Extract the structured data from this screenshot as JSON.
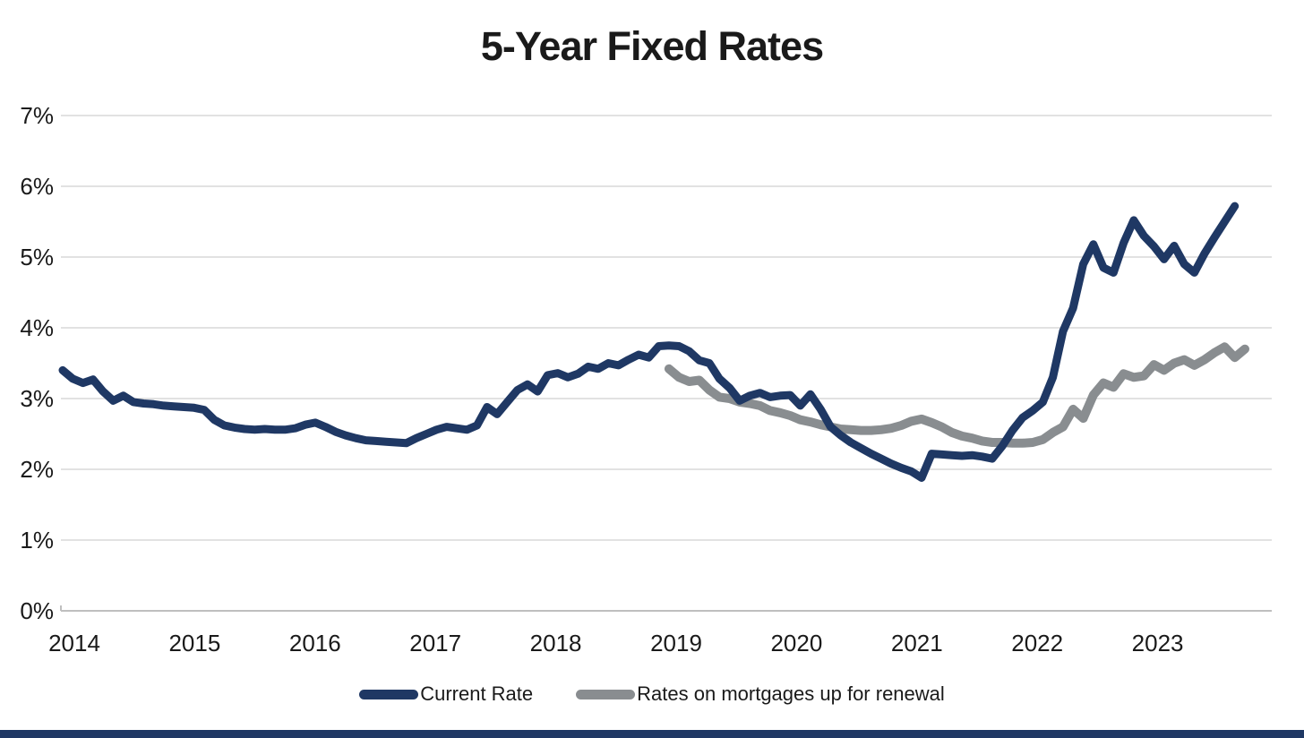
{
  "title": "5-Year Fixed Rates",
  "colors": {
    "navy": "#1f3864",
    "gray": "#898d90",
    "gridline": "#d9d9d9",
    "axis_line": "#bfbfbf",
    "text": "#1a1a1a"
  },
  "chart_data": {
    "type": "line",
    "title": "5-Year Fixed Rates",
    "x_unit": "month",
    "x_start": "2014-01",
    "x_end": "2023-10",
    "grid": true,
    "legend_position": "bottom",
    "y_axis": {
      "min": 0,
      "max": 7,
      "format": "percent",
      "tick_labels": [
        "0%",
        "1%",
        "2%",
        "3%",
        "4%",
        "5%",
        "6%",
        "7%"
      ]
    },
    "x_axis": {
      "tick_labels": [
        "2014",
        "2015",
        "2016",
        "2017",
        "2018",
        "2019",
        "2020",
        "2021",
        "2022",
        "2023"
      ]
    },
    "series": [
      {
        "id": "current-rate",
        "name": "Current Rate",
        "color": "#1f3864",
        "start_month_index": 0,
        "values": [
          3.4,
          3.28,
          3.22,
          3.27,
          3.1,
          2.97,
          3.04,
          2.95,
          2.93,
          2.92,
          2.9,
          2.89,
          2.88,
          2.87,
          2.84,
          2.7,
          2.62,
          2.59,
          2.57,
          2.56,
          2.57,
          2.56,
          2.56,
          2.58,
          2.63,
          2.66,
          2.6,
          2.53,
          2.48,
          2.44,
          2.41,
          2.4,
          2.39,
          2.38,
          2.37,
          2.44,
          2.5,
          2.56,
          2.6,
          2.58,
          2.56,
          2.62,
          2.88,
          2.78,
          2.95,
          3.12,
          3.2,
          3.1,
          3.33,
          3.36,
          3.3,
          3.35,
          3.45,
          3.42,
          3.5,
          3.47,
          3.55,
          3.62,
          3.58,
          3.74,
          3.75,
          3.74,
          3.67,
          3.54,
          3.5,
          3.28,
          3.15,
          2.97,
          3.04,
          3.08,
          3.02,
          3.04,
          3.05,
          2.9,
          3.06,
          2.85,
          2.6,
          2.48,
          2.38,
          2.3,
          2.22,
          2.15,
          2.08,
          2.02,
          1.97,
          1.88,
          2.22,
          2.21,
          2.2,
          2.19,
          2.2,
          2.18,
          2.15,
          2.33,
          2.55,
          2.73,
          2.83,
          2.95,
          3.3,
          3.95,
          4.28,
          4.9,
          5.18,
          4.85,
          4.78,
          5.2,
          5.52,
          5.3,
          5.15,
          4.97,
          5.16,
          4.9,
          4.78,
          5.05,
          5.28,
          5.5,
          5.72
        ]
      },
      {
        "id": "renewal-rate",
        "name": "Rates on mortgages up for renewal",
        "color": "#898d90",
        "start_month_index": 60,
        "values": [
          3.42,
          3.3,
          3.24,
          3.26,
          3.12,
          3.02,
          3.0,
          2.95,
          2.93,
          2.9,
          2.83,
          2.8,
          2.76,
          2.7,
          2.67,
          2.63,
          2.6,
          2.57,
          2.56,
          2.55,
          2.55,
          2.56,
          2.58,
          2.62,
          2.68,
          2.71,
          2.66,
          2.6,
          2.52,
          2.47,
          2.44,
          2.4,
          2.38,
          2.38,
          2.37,
          2.37,
          2.38,
          2.42,
          2.52,
          2.6,
          2.85,
          2.72,
          3.05,
          3.22,
          3.16,
          3.35,
          3.3,
          3.32,
          3.48,
          3.4,
          3.5,
          3.55,
          3.47,
          3.55,
          3.65,
          3.73,
          3.58,
          3.7
        ]
      }
    ]
  }
}
